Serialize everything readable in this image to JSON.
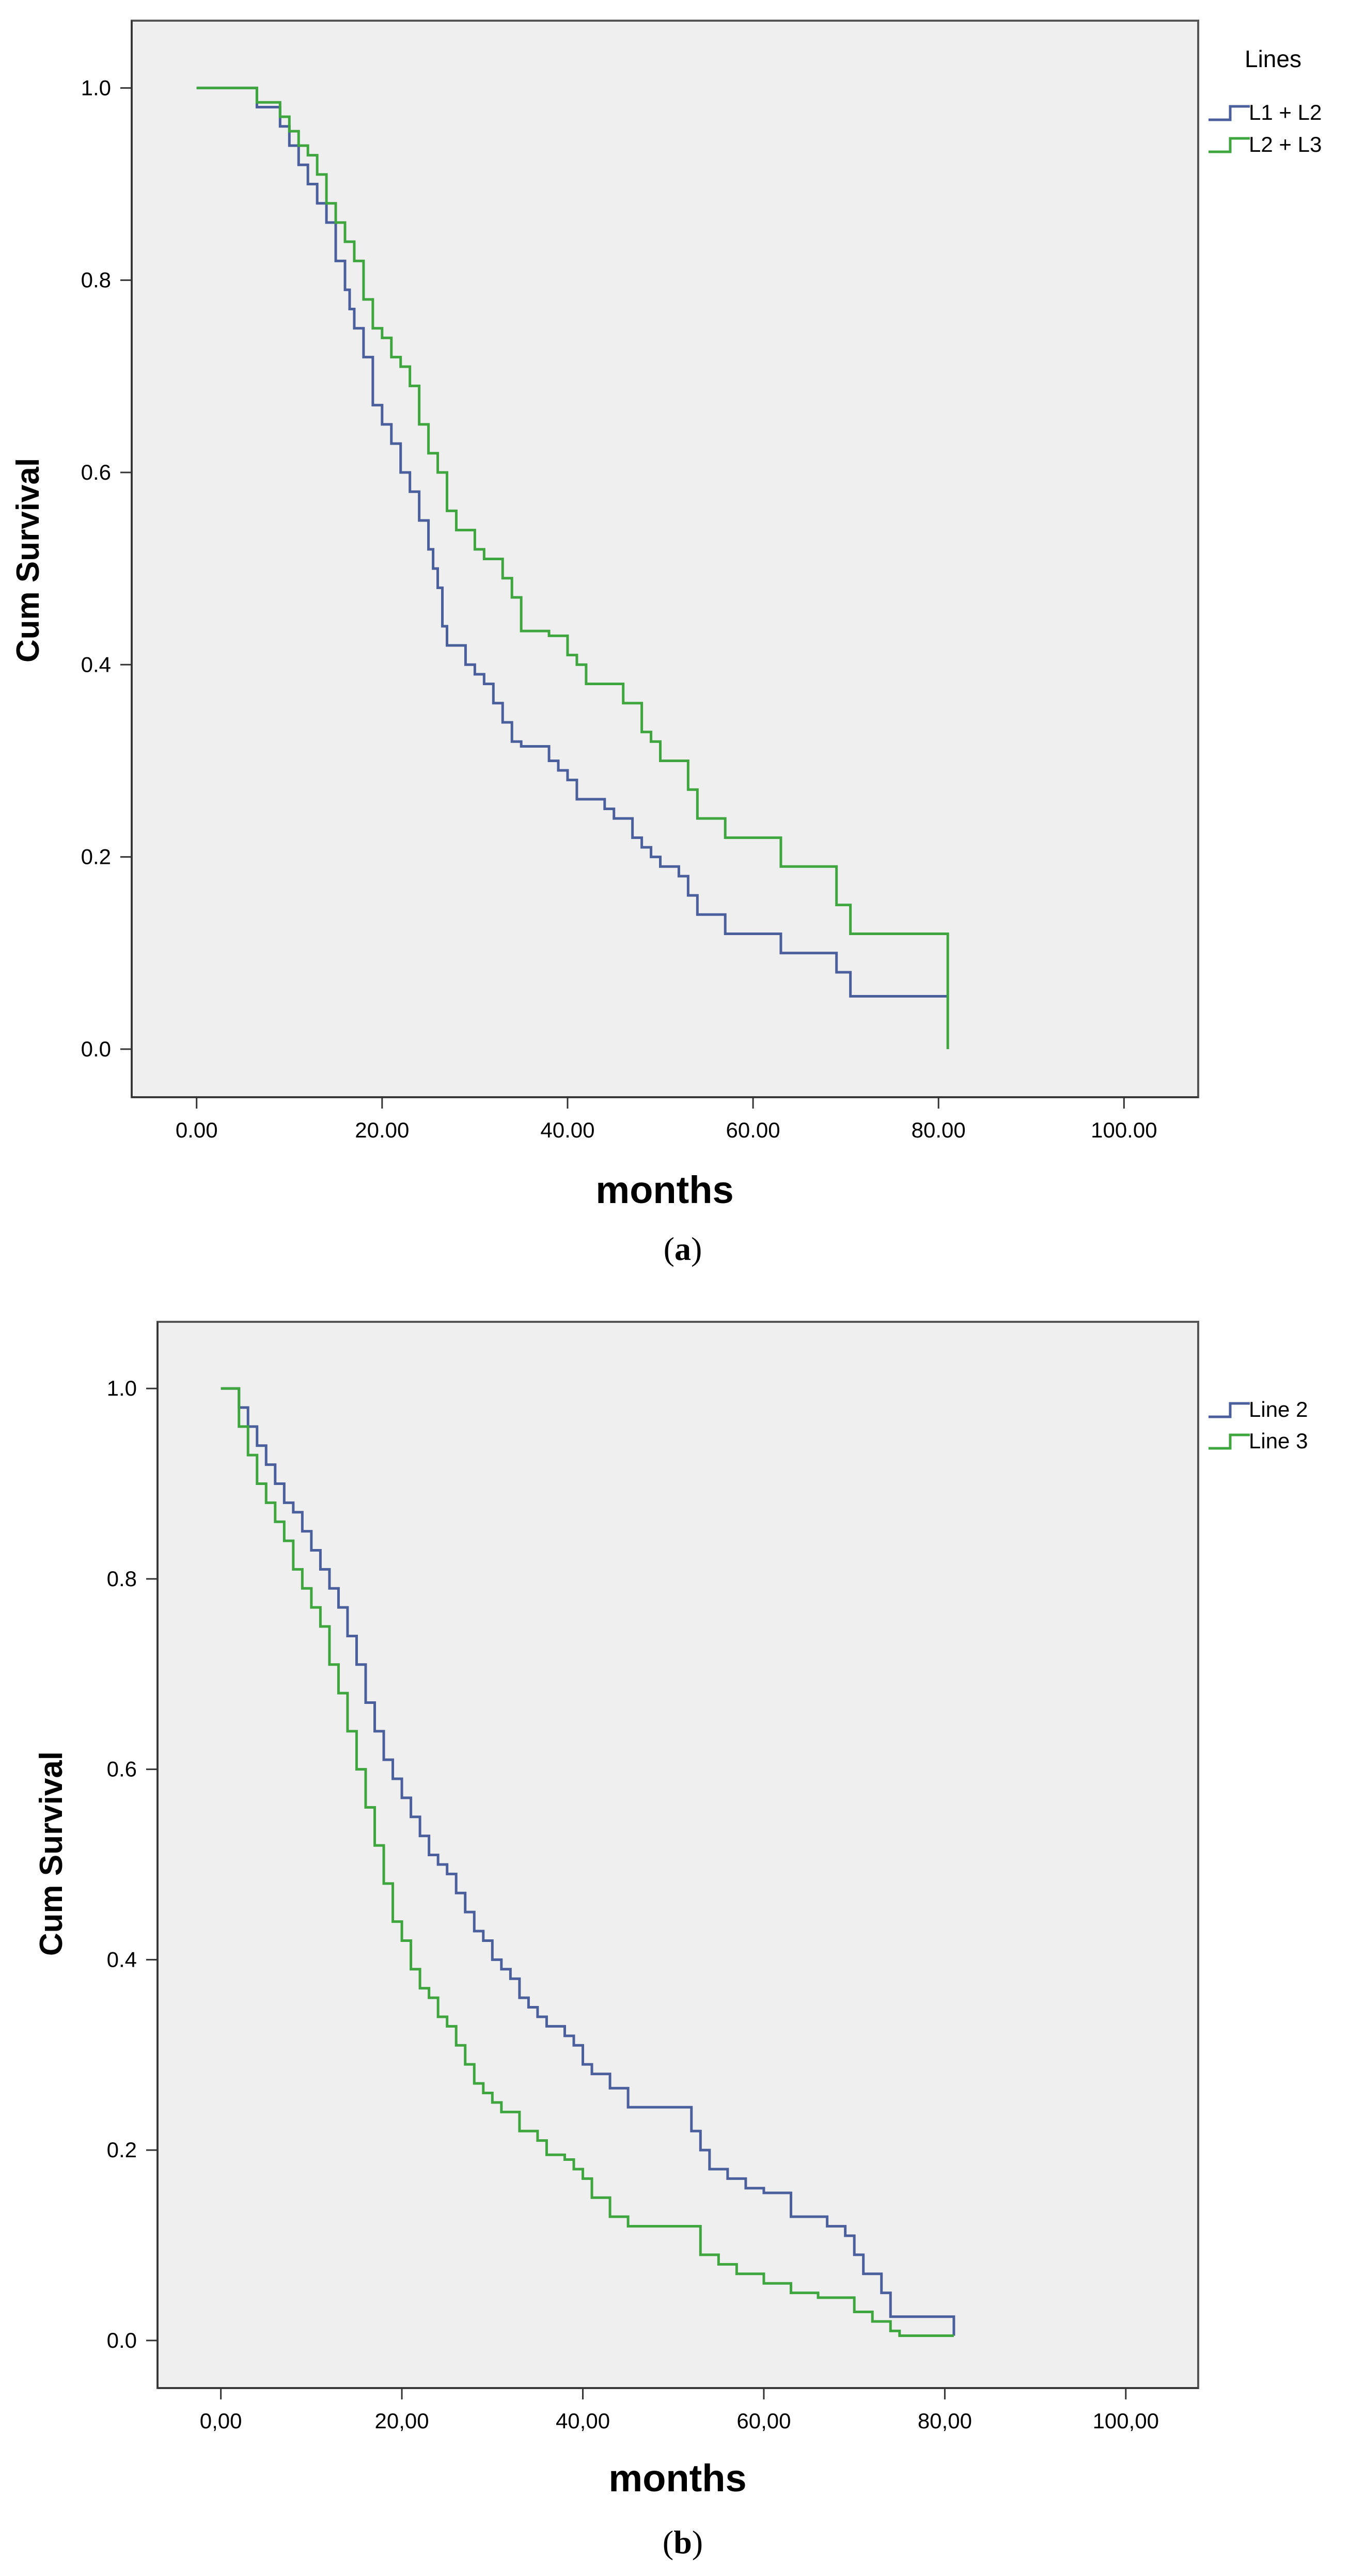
{
  "chart_data": [
    {
      "type": "line",
      "subtype": "kaplan-meier step",
      "caption_letter": "a",
      "xlabel": "months",
      "ylabel": "Cum Survival",
      "xlim": [
        -7,
        108
      ],
      "ylim": [
        -0.05,
        1.07
      ],
      "xticks": [
        0,
        20,
        40,
        60,
        80,
        100
      ],
      "xtick_labels": [
        "0.00",
        "20.00",
        "40.00",
        "60.00",
        "80.00",
        "100.00"
      ],
      "yticks": [
        0.0,
        0.2,
        0.4,
        0.6,
        0.8,
        1.0
      ],
      "ytick_labels": [
        "0.0",
        "0.2",
        "0.4",
        "0.6",
        "0.8",
        "1.0"
      ],
      "legend_title": "Lines",
      "legend_position": "outside-right",
      "series": [
        {
          "name": "L1 + L2",
          "color": "#4a5f9c",
          "x": [
            0,
            6.5,
            9,
            10,
            11,
            12,
            13,
            14,
            15,
            16,
            16.5,
            17,
            18,
            19,
            20,
            21,
            22,
            23,
            24,
            25,
            25.5,
            26,
            26.5,
            27,
            28,
            29,
            30,
            31,
            32,
            33,
            34,
            35,
            36,
            38,
            39,
            40,
            41,
            42,
            44,
            45,
            46,
            47,
            48,
            49,
            50,
            51,
            52,
            53,
            54,
            55,
            57,
            58,
            62,
            63,
            68,
            69,
            70.5,
            81,
            81
          ],
          "y": [
            1.0,
            0.98,
            0.96,
            0.94,
            0.92,
            0.9,
            0.88,
            0.86,
            0.82,
            0.79,
            0.77,
            0.75,
            0.72,
            0.67,
            0.65,
            0.63,
            0.6,
            0.58,
            0.55,
            0.52,
            0.5,
            0.48,
            0.44,
            0.42,
            0.42,
            0.4,
            0.39,
            0.38,
            0.36,
            0.34,
            0.32,
            0.315,
            0.315,
            0.3,
            0.29,
            0.28,
            0.26,
            0.26,
            0.25,
            0.24,
            0.24,
            0.22,
            0.21,
            0.2,
            0.19,
            0.19,
            0.18,
            0.16,
            0.14,
            0.14,
            0.12,
            0.12,
            0.12,
            0.1,
            0.1,
            0.08,
            0.055,
            0.055,
            0.055
          ]
        },
        {
          "name": "L2 + L3",
          "color": "#3fa63f",
          "x": [
            0,
            6.5,
            9,
            10,
            11,
            12,
            13,
            14,
            15,
            16,
            17,
            18,
            19,
            20,
            21,
            22,
            23,
            24,
            25,
            26,
            27,
            28,
            30,
            31,
            33,
            34,
            35,
            38,
            40,
            41,
            42,
            45,
            46,
            48,
            49,
            50,
            51,
            53,
            54,
            56,
            57,
            62,
            63,
            68,
            69,
            70.5,
            81,
            81
          ],
          "y": [
            1.0,
            0.985,
            0.97,
            0.955,
            0.94,
            0.93,
            0.91,
            0.88,
            0.86,
            0.84,
            0.82,
            0.78,
            0.75,
            0.74,
            0.72,
            0.71,
            0.69,
            0.65,
            0.62,
            0.6,
            0.56,
            0.54,
            0.52,
            0.51,
            0.49,
            0.47,
            0.435,
            0.43,
            0.41,
            0.4,
            0.38,
            0.38,
            0.36,
            0.33,
            0.32,
            0.3,
            0.3,
            0.27,
            0.24,
            0.24,
            0.22,
            0.22,
            0.19,
            0.19,
            0.15,
            0.12,
            0.12,
            0.0
          ]
        }
      ]
    },
    {
      "type": "line",
      "subtype": "kaplan-meier step",
      "caption_letter": "b",
      "xlabel": "months",
      "ylabel": "Cum Survival",
      "xlim": [
        -7,
        108
      ],
      "ylim": [
        -0.05,
        1.07
      ],
      "xticks": [
        0,
        20,
        40,
        60,
        80,
        100
      ],
      "xtick_labels": [
        "0,00",
        "20,00",
        "40,00",
        "60,00",
        "80,00",
        "100,00"
      ],
      "yticks": [
        0.0,
        0.2,
        0.4,
        0.6,
        0.8,
        1.0
      ],
      "ytick_labels": [
        "0.0",
        "0.2",
        "0.4",
        "0.6",
        "0.8",
        "1.0"
      ],
      "legend_title": "",
      "legend_position": "outside-right",
      "series": [
        {
          "name": "Line 2",
          "color": "#4a5f9c",
          "x": [
            0,
            2,
            3,
            4,
            5,
            6,
            7,
            8,
            9,
            10,
            11,
            12,
            13,
            14,
            15,
            16,
            17,
            18,
            19,
            20,
            21,
            22,
            23,
            24,
            25,
            26,
            27,
            28,
            29,
            30,
            31,
            32,
            33,
            34,
            35,
            36,
            38,
            39,
            40,
            41,
            43,
            45,
            48,
            52,
            53,
            54,
            55,
            56,
            58,
            60,
            63,
            64,
            67,
            69,
            70,
            71,
            72,
            73,
            74,
            75,
            81,
            81
          ],
          "y": [
            1.0,
            0.98,
            0.96,
            0.94,
            0.92,
            0.9,
            0.88,
            0.87,
            0.85,
            0.83,
            0.81,
            0.79,
            0.77,
            0.74,
            0.71,
            0.67,
            0.64,
            0.61,
            0.59,
            0.57,
            0.55,
            0.53,
            0.51,
            0.5,
            0.49,
            0.47,
            0.45,
            0.43,
            0.42,
            0.4,
            0.39,
            0.38,
            0.36,
            0.35,
            0.34,
            0.33,
            0.32,
            0.31,
            0.29,
            0.28,
            0.265,
            0.245,
            0.245,
            0.22,
            0.2,
            0.18,
            0.18,
            0.17,
            0.16,
            0.155,
            0.13,
            0.13,
            0.12,
            0.11,
            0.09,
            0.07,
            0.07,
            0.05,
            0.025,
            0.025,
            0.025,
            0.005
          ]
        },
        {
          "name": "Line 3",
          "color": "#3fa63f",
          "x": [
            0,
            2,
            3,
            4,
            5,
            6,
            7,
            8,
            9,
            10,
            11,
            12,
            13,
            14,
            15,
            16,
            17,
            18,
            19,
            20,
            21,
            22,
            23,
            24,
            25,
            26,
            27,
            28,
            29,
            30,
            31,
            33,
            35,
            36,
            38,
            39,
            40,
            41,
            43,
            45,
            52,
            53,
            55,
            57,
            60,
            63,
            66,
            70,
            72,
            74,
            75,
            81
          ],
          "y": [
            1.0,
            0.96,
            0.93,
            0.9,
            0.88,
            0.86,
            0.84,
            0.81,
            0.79,
            0.77,
            0.75,
            0.71,
            0.68,
            0.64,
            0.6,
            0.56,
            0.52,
            0.48,
            0.44,
            0.42,
            0.39,
            0.37,
            0.36,
            0.34,
            0.33,
            0.31,
            0.29,
            0.27,
            0.26,
            0.25,
            0.24,
            0.22,
            0.21,
            0.195,
            0.19,
            0.18,
            0.17,
            0.15,
            0.13,
            0.12,
            0.12,
            0.09,
            0.08,
            0.07,
            0.06,
            0.05,
            0.045,
            0.03,
            0.02,
            0.01,
            0.005,
            0.005
          ]
        }
      ]
    }
  ]
}
